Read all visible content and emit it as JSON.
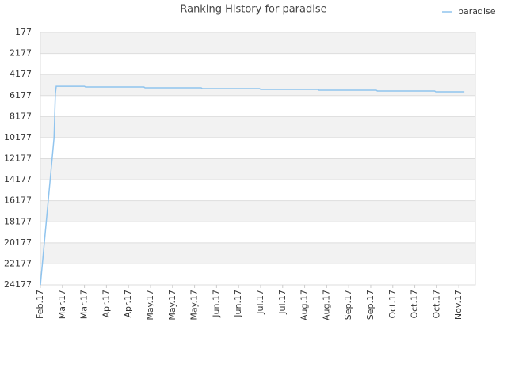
{
  "chart_data": {
    "type": "line",
    "title": "Ranking History for paradise",
    "xlim": [
      0,
      19.75
    ],
    "xticks": [
      {
        "value": 0,
        "label": "Feb.17"
      },
      {
        "value": 1,
        "label": "Mar.17"
      },
      {
        "value": 2,
        "label": "Mar.17"
      },
      {
        "value": 3,
        "label": "Apr.17"
      },
      {
        "value": 4,
        "label": "Apr.17"
      },
      {
        "value": 5,
        "label": "May.17"
      },
      {
        "value": 6,
        "label": "May.17"
      },
      {
        "value": 7,
        "label": "May.17"
      },
      {
        "value": 8,
        "label": "Jun.17"
      },
      {
        "value": 9,
        "label": "Jun.17"
      },
      {
        "value": 10,
        "label": "Jul.17"
      },
      {
        "value": 11,
        "label": "Jul.17"
      },
      {
        "value": 12,
        "label": "Aug.17"
      },
      {
        "value": 13,
        "label": "Aug.17"
      },
      {
        "value": 14,
        "label": "Sep.17"
      },
      {
        "value": 15,
        "label": "Sep.17"
      },
      {
        "value": 16,
        "label": "Oct.17"
      },
      {
        "value": 17,
        "label": "Oct.17"
      },
      {
        "value": 18,
        "label": "Oct.17"
      },
      {
        "value": 19,
        "label": "Nov.17"
      }
    ],
    "ylim": [
      177,
      24177
    ],
    "y_inverted": true,
    "yticks": [
      177,
      2177,
      4177,
      6177,
      8177,
      10177,
      12177,
      14177,
      16177,
      18177,
      20177,
      22177,
      24177
    ],
    "grid": true,
    "legend": "top-right",
    "x": [
      0,
      0.62,
      0.68,
      0.72,
      2.0,
      2.05,
      4.7,
      4.75,
      7.3,
      7.35,
      9.95,
      10.0,
      12.6,
      12.65,
      15.25,
      15.3,
      17.9,
      17.95,
      19.25
    ],
    "series": [
      {
        "name": "paradise",
        "color": "#90c4ee",
        "values": [
          24177,
          10200,
          6000,
          5300,
          5300,
          5370,
          5370,
          5440,
          5440,
          5515,
          5515,
          5590,
          5590,
          5665,
          5665,
          5740,
          5740,
          5815,
          5815
        ]
      }
    ]
  }
}
